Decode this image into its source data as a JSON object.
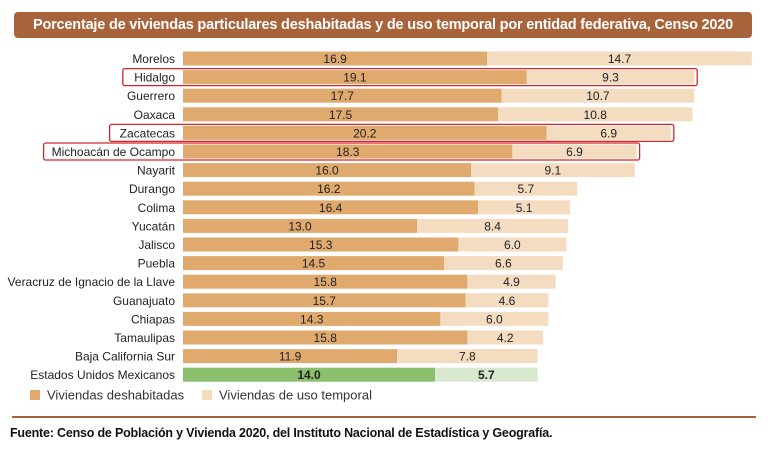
{
  "colors": {
    "title_bg": "#a9633a",
    "deshabitadas": "#e0aa6f",
    "uso_temporal": "#f4dcc0",
    "national_deshabitadas": "#8bbf6b",
    "national_uso_temporal": "#d8e8cf",
    "highlight_box": "#d9232b"
  },
  "footer": {
    "source": "Fuente: Censo de Población y Vivienda 2020, del Instituto Nacional de Estadística y Geografía."
  },
  "chart_data": {
    "type": "bar",
    "orientation": "horizontal",
    "stacked": true,
    "title": "Porcentaje de viviendas particulares deshabitadas y de uso temporal por entidad federativa, Censo 2020",
    "categories": [
      "Morelos",
      "Hidalgo",
      "Guerrero",
      "Oaxaca",
      "Zacatecas",
      "Michoacán de Ocampo",
      "Nayarit",
      "Durango",
      "Colima",
      "Yucatán",
      "Jalisco",
      "Puebla",
      "Veracruz de Ignacio de la Llave",
      "Guanajuato",
      "Chiapas",
      "Tamaulipas",
      "Baja California Sur",
      "Estados Unidos Mexicanos"
    ],
    "series": [
      {
        "name": "Viviendas deshabitadas",
        "values": [
          16.9,
          19.1,
          17.7,
          17.5,
          20.2,
          18.3,
          16.0,
          16.2,
          16.4,
          13.0,
          15.3,
          14.5,
          15.8,
          15.7,
          14.3,
          15.8,
          11.9,
          14.0
        ]
      },
      {
        "name": "Viviendas de uso temporal",
        "values": [
          14.7,
          9.3,
          10.7,
          10.8,
          6.9,
          6.9,
          9.1,
          5.7,
          5.1,
          8.4,
          6.0,
          6.6,
          4.9,
          4.6,
          6.0,
          4.2,
          7.8,
          5.7
        ]
      }
    ],
    "highlighted": [
      "Hidalgo",
      "Zacatecas",
      "Michoacán de Ocampo"
    ],
    "national_total_category": "Estados Unidos Mexicanos",
    "legend": "bottom-left",
    "grid": false
  }
}
